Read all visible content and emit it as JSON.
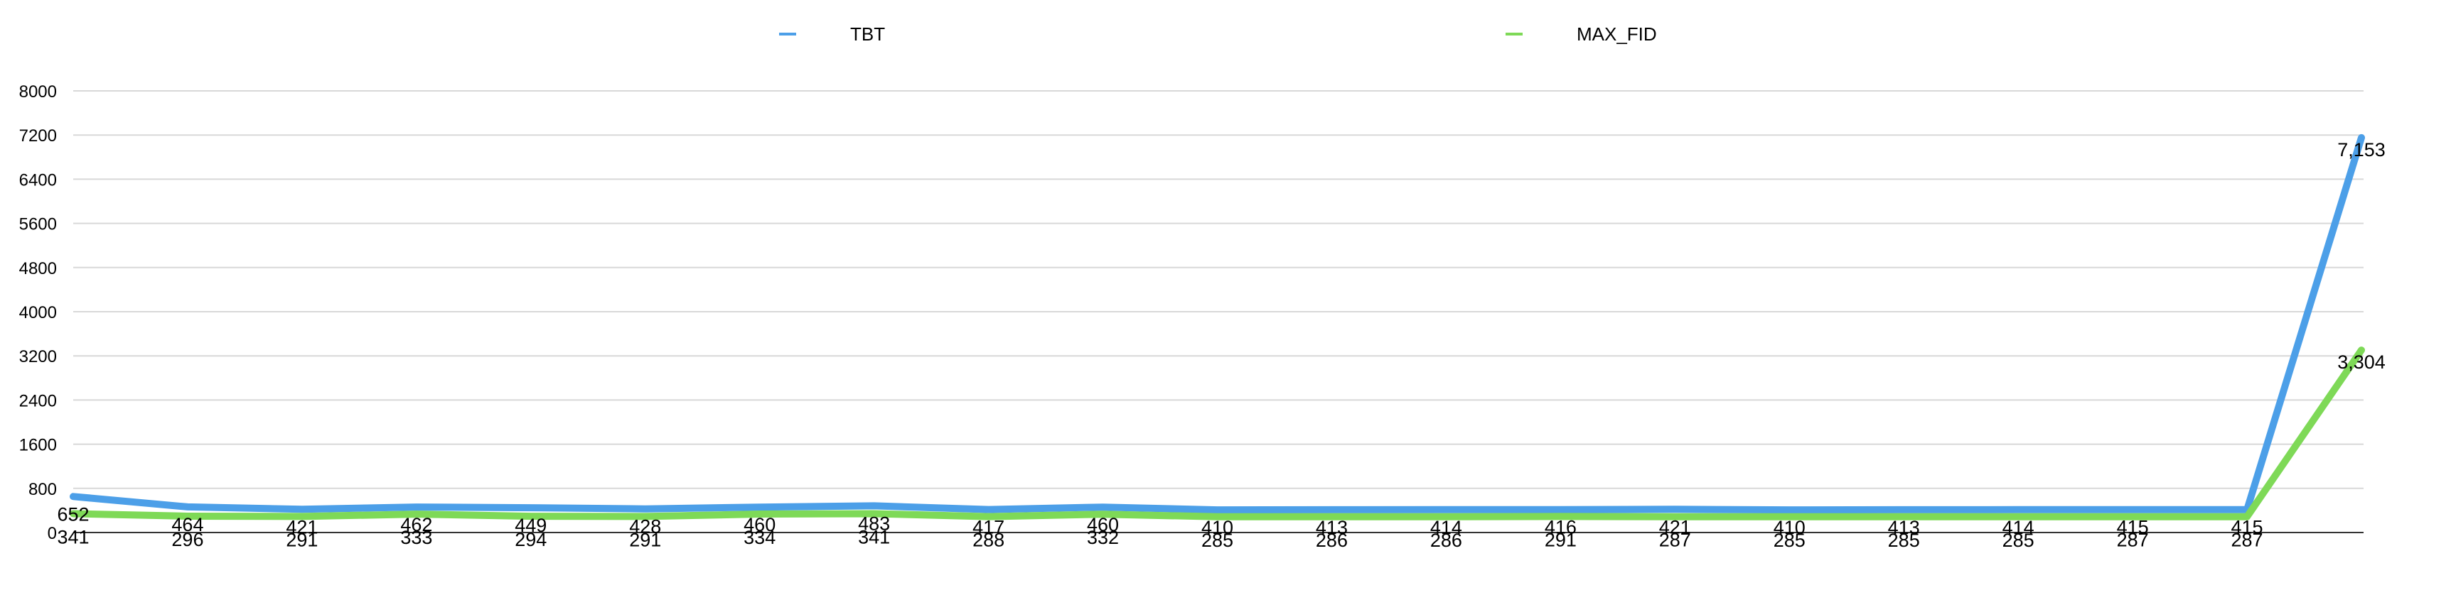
{
  "chart_data": {
    "type": "line",
    "x": [
      1,
      2,
      3,
      4,
      5,
      6,
      7,
      8,
      9,
      10,
      11,
      12,
      13,
      14,
      15,
      16,
      17,
      18,
      19,
      20,
      21
    ],
    "series": [
      {
        "name": "TBT",
        "color": "#4c9fe8",
        "values": [
          652,
          464,
          421,
          462,
          449,
          428,
          460,
          483,
          417,
          460,
          410,
          413,
          414,
          416,
          421,
          410,
          413,
          414,
          415,
          415,
          7153
        ],
        "labels": [
          "652",
          "464",
          "421",
          "462",
          "449",
          "428",
          "460",
          "483",
          "417",
          "460",
          "410",
          "413",
          "414",
          "416",
          "421",
          "410",
          "413",
          "414",
          "415",
          "415",
          "7,153"
        ]
      },
      {
        "name": "MAX_FID",
        "color": "#7ed957",
        "values": [
          341,
          296,
          291,
          333,
          294,
          291,
          334,
          341,
          288,
          332,
          285,
          286,
          286,
          291,
          287,
          285,
          285,
          285,
          287,
          287,
          3304
        ],
        "labels": [
          "341",
          "296",
          "291",
          "333",
          "294",
          "291",
          "334",
          "341",
          "288",
          "332",
          "285",
          "286",
          "286",
          "291",
          "287",
          "285",
          "285",
          "285",
          "287",
          "287",
          "3,304"
        ]
      }
    ],
    "yticks": [
      "0",
      "800",
      "1600",
      "2400",
      "3200",
      "4000",
      "4800",
      "5600",
      "6400",
      "7200",
      "8000"
    ],
    "ylim": [
      0,
      8000
    ],
    "grid": true,
    "legend_position": "top"
  }
}
